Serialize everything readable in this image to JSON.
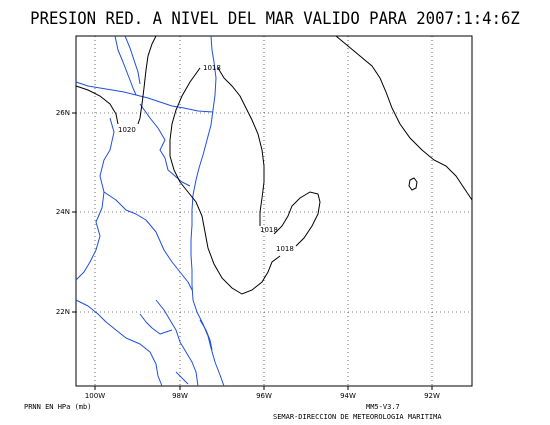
{
  "title": "PRESION RED. A NIVEL DEL MAR VALIDO PARA 2007:1:4:6Z",
  "map": {
    "x_ticks": [
      "100W",
      "98W",
      "96W",
      "94W",
      "92W"
    ],
    "y_ticks": [
      "26N",
      "24N",
      "22N"
    ],
    "contour_labels": [
      "1018",
      "1020",
      "1018",
      "1018"
    ],
    "colors": {
      "coastline": "#1f4fe0",
      "contours": "#000000",
      "grid": "#000000"
    }
  },
  "footer": {
    "units": "PRNN EN HPa (mb)",
    "model": "MM5-V3.7",
    "agency": "SEMAR-DIRECCION DE METEOROLOGIA MARITIMA"
  }
}
